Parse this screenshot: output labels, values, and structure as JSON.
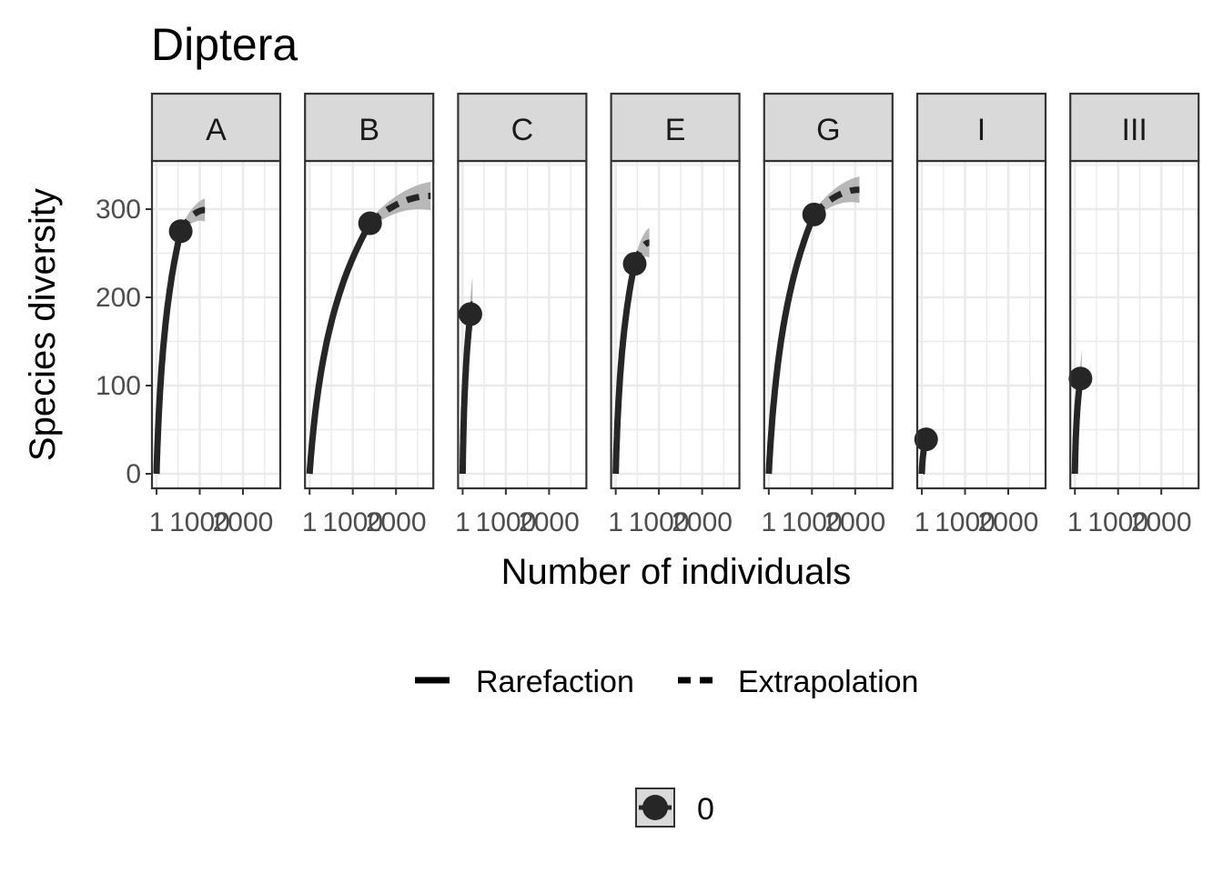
{
  "chart_data": {
    "type": "line",
    "title": "Diptera",
    "xlabel": "Number of individuals",
    "ylabel": "Species diversity",
    "ylim": [
      0,
      350
    ],
    "xlim": [
      -100,
      2900
    ],
    "x_ticks": [
      0,
      1000,
      2000
    ],
    "x_tick_labels": [
      "1",
      "1000",
      "2000"
    ],
    "y_ticks": [
      0,
      100,
      200,
      300
    ],
    "y_tick_labels": [
      "0",
      "100",
      "200",
      "300"
    ],
    "grid": true,
    "legend_position": "bottom",
    "linetype_legend": [
      {
        "key": "rarefaction",
        "label": "Rarefaction",
        "style": "solid"
      },
      {
        "key": "extrapolation",
        "label": "Extrapolation",
        "style": "dashed"
      }
    ],
    "point_legend": [
      {
        "label": "0"
      }
    ],
    "colors": {
      "line": "#262626",
      "ribbon": "#a6a6a6",
      "strip": "#d9d9d9",
      "panel_border": "#333333",
      "grid": "#ebebeb"
    },
    "facets": [
      {
        "label": "A",
        "observed_n": 560,
        "observed_s": 275,
        "extrap_end_n": 1120,
        "extrap_end_s": 299,
        "ribbon_halfwidth": 13
      },
      {
        "label": "B",
        "observed_n": 1400,
        "observed_s": 284,
        "extrap_end_n": 2800,
        "extrap_end_s": 315,
        "ribbon_halfwidth": 16
      },
      {
        "label": "C",
        "observed_n": 180,
        "observed_s": 181,
        "extrap_end_n": 230,
        "extrap_end_s": 192,
        "ribbon_halfwidth": 30
      },
      {
        "label": "E",
        "observed_n": 440,
        "observed_s": 238,
        "extrap_end_n": 780,
        "extrap_end_s": 262,
        "ribbon_halfwidth": 17
      },
      {
        "label": "G",
        "observed_n": 1050,
        "observed_s": 294,
        "extrap_end_n": 2100,
        "extrap_end_s": 322,
        "ribbon_halfwidth": 15
      },
      {
        "label": "I",
        "observed_n": 100,
        "observed_s": 39,
        "extrap_end_n": 110,
        "extrap_end_s": 40,
        "ribbon_halfwidth": 0
      },
      {
        "label": "III",
        "observed_n": 130,
        "observed_s": 108,
        "extrap_end_n": 160,
        "extrap_end_s": 115,
        "ribbon_halfwidth": 25
      }
    ]
  }
}
